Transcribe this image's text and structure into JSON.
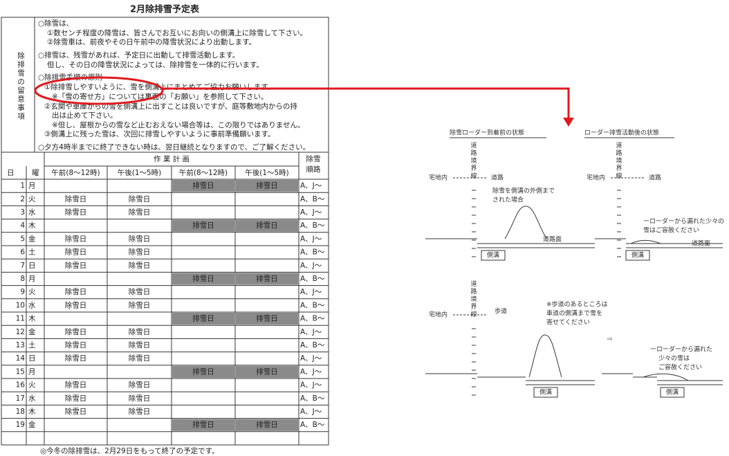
{
  "header": {
    "title": "2月除排雪予定表"
  },
  "notes": {
    "label": "除排雪の留意事項",
    "lines": [
      "○除雪は、",
      "①数センチ程度の降雪は、皆さんでお互いにお向いの側溝上に除雪して下さい。",
      "②除雪車は、前夜やその日午前中の降雪状況により出動します。",
      "○排雪は、残雪があれば、予定日に出動して排雪活動します。",
      "但し、その日の降雪状況によっては、除排雪を一体的に行います。",
      "○除排雪手順の原則",
      "①除排雪しやすいように、雪を側溝上にまとめてご協力お願いします。",
      "※「雪の寄せ方」については裏面の「お願い」を参照して下さい。",
      "②玄関や車庫からの雪を側溝上に出すことは良いですが、庭等敷地内からの持",
      "出は止めて下さい。",
      "※但し、屋根からの雪など止むおえない場合等は、この限りではありません。",
      "③側溝上に残った雪は、次回に排雪しやすいように事前準備願います。",
      "○夕方4時半までに終了できない時は、翌日継続となりますので、ご了解ください。"
    ]
  },
  "table": {
    "plan": "作 業 計 画",
    "route_header": [
      "除雪",
      "順路"
    ],
    "columns": [
      "日",
      "曜",
      "午前(8〜12時)",
      "午後(1〜5時)",
      "午前(8〜12時)",
      "午後(1〜5時)"
    ],
    "rows": [
      [
        "1",
        "月",
        null,
        null,
        "排雪日",
        "排雪日",
        "A、J〜"
      ],
      [
        "2",
        "火",
        "除雪日",
        "除雪日",
        null,
        null,
        "A、B〜"
      ],
      [
        "3",
        "水",
        "除雪日",
        "除雪日",
        null,
        null,
        "A、J〜"
      ],
      [
        "4",
        "木",
        null,
        null,
        "排雪日",
        "排雪日",
        "A、B〜"
      ],
      [
        "5",
        "金",
        "除雪日",
        "除雪日",
        null,
        null,
        "A、J〜"
      ],
      [
        "6",
        "土",
        "除雪日",
        "除雪日",
        null,
        null,
        "A、B〜"
      ],
      [
        "7",
        "日",
        "除雪日",
        "除雪日",
        null,
        null,
        "A、J〜"
      ],
      [
        "8",
        "月",
        null,
        null,
        "排雪日",
        "排雪日",
        "A、B〜"
      ],
      [
        "9",
        "火",
        "除雪日",
        "除雪日",
        null,
        null,
        "A、J〜"
      ],
      [
        "10",
        "水",
        "除雪日",
        "除雪日",
        null,
        null,
        "A、B〜"
      ],
      [
        "11",
        "木",
        null,
        null,
        "排雪日",
        "排雪日",
        "A、B〜"
      ],
      [
        "12",
        "金",
        "除雪日",
        "除雪日",
        null,
        null,
        "A、J〜"
      ],
      [
        "13",
        "土",
        "除雪日",
        "除雪日",
        null,
        null,
        "A、B〜"
      ],
      [
        "14",
        "日",
        "除雪日",
        "除雪日",
        null,
        null,
        "A、J〜"
      ],
      [
        "15",
        "月",
        null,
        null,
        "排雪日",
        "排雪日",
        "A、J〜"
      ],
      [
        "16",
        "火",
        "除雪日",
        "除雪日",
        null,
        null,
        "A、J〜"
      ],
      [
        "17",
        "水",
        "除雪日",
        "除雪日",
        null,
        null,
        "A、B〜"
      ],
      [
        "18",
        "木",
        "除雪日",
        "除雪日",
        null,
        null,
        "A、J〜"
      ],
      [
        "19",
        "金",
        null,
        null,
        "排雪日",
        "排雪日",
        "A、B〜"
      ]
    ]
  },
  "footer": "◎今冬の除排雪は、2月29日をもって終了の予定です。",
  "diagram": {
    "before_title": "除雪ローダー到着前の状態",
    "after_title": "ローダー排雪活動後の状態",
    "boundary": "道路境界線",
    "lot": "宅地内",
    "road": "道路",
    "case_lines": [
      "除雪を側溝の外側まで",
      "された場合"
    ],
    "road_surface": "道路面",
    "gutter": "側溝",
    "leftover_top": [
      "ーローダーから漏れた少々の",
      "雪はご容赦ください"
    ],
    "sidewalk": "歩道",
    "sidewalk_note": [
      "※歩道のあるところは",
      "車道の側溝まで雪を",
      "寄せてください"
    ],
    "arrow": "⇨",
    "leftover_bottom": [
      "ーローダーから漏れた",
      "少々の雪は",
      "ご容赦ください"
    ]
  }
}
